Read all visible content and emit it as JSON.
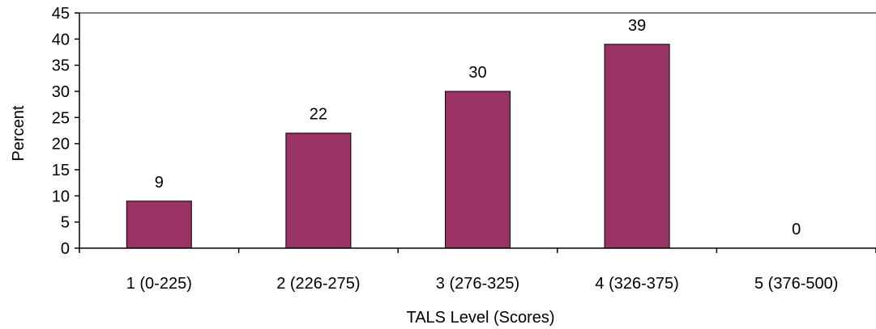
{
  "chart_data": {
    "type": "bar",
    "categories": [
      "1 (0-225)",
      "2 (226-275)",
      "3 (276-325)",
      "4 (326-375)",
      "5 (376-500)"
    ],
    "values": [
      9,
      22,
      30,
      39,
      0
    ],
    "data_labels": [
      "9",
      "22",
      "30",
      "39",
      "0"
    ],
    "xlabel": "TALS Level (Scores)",
    "ylabel": "Percent",
    "ylim": [
      0,
      45
    ],
    "yticks": [
      0,
      5,
      10,
      15,
      20,
      25,
      30,
      35,
      40,
      45
    ],
    "bar_color": "#993366",
    "grid": false,
    "legend": "none"
  }
}
